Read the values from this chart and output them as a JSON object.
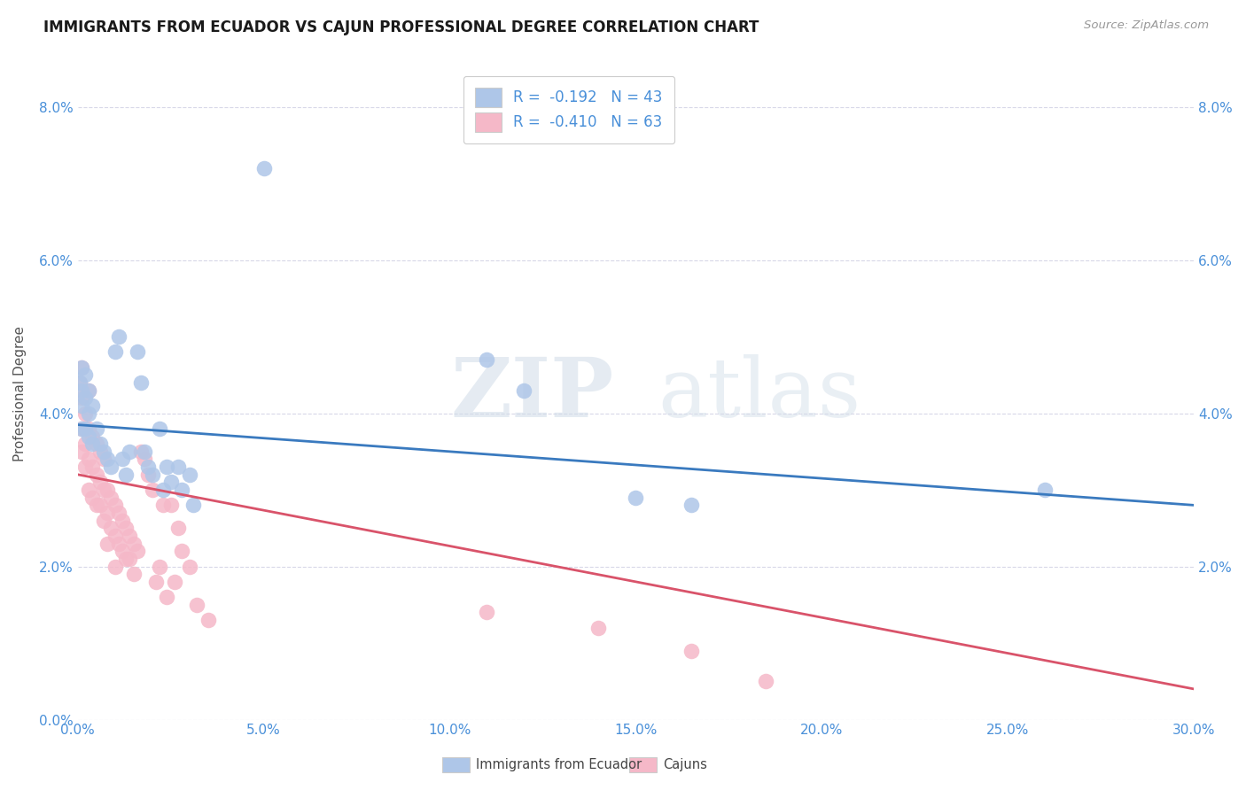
{
  "title": "IMMIGRANTS FROM ECUADOR VS CAJUN PROFESSIONAL DEGREE CORRELATION CHART",
  "source": "Source: ZipAtlas.com",
  "ylabel_label": "Professional Degree",
  "xlim": [
    0.0,
    0.3
  ],
  "ylim": [
    -0.002,
    0.088
  ],
  "plot_ylim": [
    0.0,
    0.085
  ],
  "watermark_zip": "ZIP",
  "watermark_atlas": "atlas",
  "legend_labels": [
    "Immigrants from Ecuador",
    "Cajuns"
  ],
  "blue_color": "#aec6e8",
  "pink_color": "#f5b8c8",
  "blue_line_color": "#3a7abf",
  "pink_line_color": "#d9536a",
  "blue_scatter": [
    [
      0.0005,
      0.044
    ],
    [
      0.001,
      0.046
    ],
    [
      0.001,
      0.043
    ],
    [
      0.001,
      0.041
    ],
    [
      0.001,
      0.038
    ],
    [
      0.002,
      0.045
    ],
    [
      0.002,
      0.042
    ],
    [
      0.002,
      0.038
    ],
    [
      0.003,
      0.043
    ],
    [
      0.003,
      0.04
    ],
    [
      0.003,
      0.037
    ],
    [
      0.004,
      0.041
    ],
    [
      0.004,
      0.036
    ],
    [
      0.005,
      0.038
    ],
    [
      0.006,
      0.036
    ],
    [
      0.007,
      0.035
    ],
    [
      0.008,
      0.034
    ],
    [
      0.009,
      0.033
    ],
    [
      0.01,
      0.048
    ],
    [
      0.011,
      0.05
    ],
    [
      0.012,
      0.034
    ],
    [
      0.013,
      0.032
    ],
    [
      0.014,
      0.035
    ],
    [
      0.016,
      0.048
    ],
    [
      0.017,
      0.044
    ],
    [
      0.018,
      0.035
    ],
    [
      0.019,
      0.033
    ],
    [
      0.02,
      0.032
    ],
    [
      0.022,
      0.038
    ],
    [
      0.023,
      0.03
    ],
    [
      0.024,
      0.033
    ],
    [
      0.025,
      0.031
    ],
    [
      0.027,
      0.033
    ],
    [
      0.028,
      0.03
    ],
    [
      0.03,
      0.032
    ],
    [
      0.031,
      0.028
    ],
    [
      0.05,
      0.072
    ],
    [
      0.11,
      0.047
    ],
    [
      0.12,
      0.043
    ],
    [
      0.15,
      0.029
    ],
    [
      0.165,
      0.028
    ],
    [
      0.26,
      0.03
    ]
  ],
  "pink_scatter": [
    [
      0.0005,
      0.044
    ],
    [
      0.001,
      0.046
    ],
    [
      0.001,
      0.042
    ],
    [
      0.001,
      0.038
    ],
    [
      0.001,
      0.035
    ],
    [
      0.002,
      0.04
    ],
    [
      0.002,
      0.036
    ],
    [
      0.002,
      0.033
    ],
    [
      0.003,
      0.043
    ],
    [
      0.003,
      0.038
    ],
    [
      0.003,
      0.034
    ],
    [
      0.003,
      0.03
    ],
    [
      0.004,
      0.037
    ],
    [
      0.004,
      0.033
    ],
    [
      0.004,
      0.029
    ],
    [
      0.005,
      0.036
    ],
    [
      0.005,
      0.032
    ],
    [
      0.005,
      0.028
    ],
    [
      0.006,
      0.035
    ],
    [
      0.006,
      0.031
    ],
    [
      0.006,
      0.028
    ],
    [
      0.007,
      0.034
    ],
    [
      0.007,
      0.03
    ],
    [
      0.007,
      0.026
    ],
    [
      0.008,
      0.03
    ],
    [
      0.008,
      0.027
    ],
    [
      0.008,
      0.023
    ],
    [
      0.009,
      0.029
    ],
    [
      0.009,
      0.025
    ],
    [
      0.01,
      0.028
    ],
    [
      0.01,
      0.024
    ],
    [
      0.01,
      0.02
    ],
    [
      0.011,
      0.027
    ],
    [
      0.011,
      0.023
    ],
    [
      0.012,
      0.026
    ],
    [
      0.012,
      0.022
    ],
    [
      0.013,
      0.025
    ],
    [
      0.013,
      0.021
    ],
    [
      0.014,
      0.024
    ],
    [
      0.014,
      0.021
    ],
    [
      0.015,
      0.023
    ],
    [
      0.015,
      0.019
    ],
    [
      0.016,
      0.022
    ],
    [
      0.017,
      0.035
    ],
    [
      0.018,
      0.034
    ],
    [
      0.019,
      0.032
    ],
    [
      0.02,
      0.03
    ],
    [
      0.021,
      0.018
    ],
    [
      0.022,
      0.02
    ],
    [
      0.023,
      0.028
    ],
    [
      0.024,
      0.016
    ],
    [
      0.025,
      0.028
    ],
    [
      0.026,
      0.018
    ],
    [
      0.027,
      0.025
    ],
    [
      0.028,
      0.022
    ],
    [
      0.03,
      0.02
    ],
    [
      0.032,
      0.015
    ],
    [
      0.035,
      0.013
    ],
    [
      0.11,
      0.014
    ],
    [
      0.14,
      0.012
    ],
    [
      0.165,
      0.009
    ],
    [
      0.185,
      0.005
    ]
  ],
  "blue_R": -0.192,
  "blue_N": 43,
  "pink_R": -0.41,
  "pink_N": 63,
  "blue_line": [
    [
      0.0,
      0.0385
    ],
    [
      0.3,
      0.028
    ]
  ],
  "pink_line": [
    [
      0.0,
      0.032
    ],
    [
      0.3,
      0.004
    ]
  ],
  "grid_color": "#d8d8e8",
  "background_color": "#ffffff",
  "title_fontsize": 12,
  "axis_label_fontsize": 11,
  "tick_fontsize": 11,
  "legend_fontsize": 12
}
